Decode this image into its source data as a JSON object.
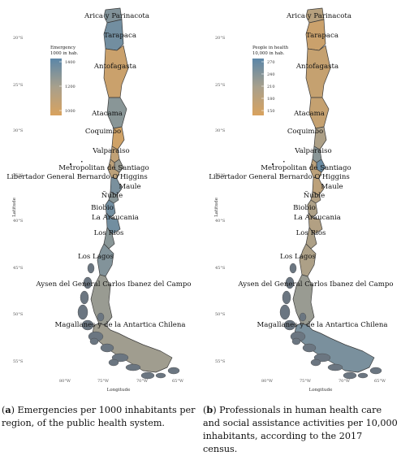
{
  "colors": {
    "low": "#d9a25e",
    "mid": "#a8a08c",
    "high": "#5b86a8",
    "coast": "#6b7681"
  },
  "axes": {
    "lat_ticks": [
      "20°S",
      "25°S",
      "30°S",
      "35°S",
      "40°S",
      "45°S",
      "50°S",
      "55°S"
    ],
    "lon_ticks": [
      "80°W",
      "75°W",
      "70°W",
      "65°W"
    ],
    "ylabel": "Latitude",
    "xlabel": "Longitude"
  },
  "panels": [
    {
      "caption_letter": "a",
      "caption_text": "Emergencies per 1000 inhabitants per region, of the public health system.",
      "legend": {
        "title_lines": [
          "Emergency",
          "1000 in hab."
        ],
        "ticks": [
          "1400",
          "1200",
          "1000"
        ]
      },
      "regions": [
        {
          "label": "Arica y Parinacota",
          "level": 0.75
        },
        {
          "label": "Tarapaca",
          "level": 0.85
        },
        {
          "label": "Antofagasta",
          "level": 0.15
        },
        {
          "label": "Atacama",
          "level": 0.7
        },
        {
          "label": "Coquimbo",
          "level": 0.1
        },
        {
          "label": "Valparaiso",
          "level": 0.25
        },
        {
          "label": "Metropolitan de Santiago",
          "level": 0.6
        },
        {
          "label": "Libertador General Bernardo O'Higgins",
          "level": 0.3
        },
        {
          "label": "Maule",
          "level": 0.8
        },
        {
          "label": "Ñuble",
          "level": 0.7
        },
        {
          "label": "Biobio",
          "level": 0.85
        },
        {
          "label": "La Araucania",
          "level": 0.85
        },
        {
          "label": "Los Rios",
          "level": 0.7
        },
        {
          "label": "Los Lagos",
          "level": 0.75
        },
        {
          "label": "Aysen del General Carlos Ibanez del Campo",
          "level": 0.6
        },
        {
          "label": "Magallanes y de la Antartica Chilena",
          "level": 0.55
        }
      ]
    },
    {
      "caption_letter": "b",
      "caption_text": "Professionals in human health care and social assistance activities per 10,000 inhabitants, according to the 2017 census.",
      "legend": {
        "title_lines": [
          "People in health",
          "10,000 in hab."
        ],
        "ticks": [
          "270",
          "240",
          "210",
          "180",
          "150"
        ]
      },
      "regions": [
        {
          "label": "Arica y Parinacota",
          "level": 0.35
        },
        {
          "label": "Tarapaca",
          "level": 0.15
        },
        {
          "label": "Antofagasta",
          "level": 0.2
        },
        {
          "label": "Atacama",
          "level": 0.2
        },
        {
          "label": "Coquimbo",
          "level": 0.45
        },
        {
          "label": "Valparaiso",
          "level": 0.7
        },
        {
          "label": "Metropolitan de Santiago",
          "level": 0.9
        },
        {
          "label": "Libertador General Bernardo O'Higgins",
          "level": 0.3
        },
        {
          "label": "Maule",
          "level": 0.3
        },
        {
          "label": "Ñuble",
          "level": 0.4
        },
        {
          "label": "Biobio",
          "level": 0.45
        },
        {
          "label": "La Araucania",
          "level": 0.4
        },
        {
          "label": "Los Rios",
          "level": 0.45
        },
        {
          "label": "Los Lagos",
          "level": 0.45
        },
        {
          "label": "Aysen del General Carlos Ibanez del Campo",
          "level": 0.6
        },
        {
          "label": "Magallanes y de la Antartica Chilena",
          "level": 0.8
        }
      ]
    }
  ]
}
